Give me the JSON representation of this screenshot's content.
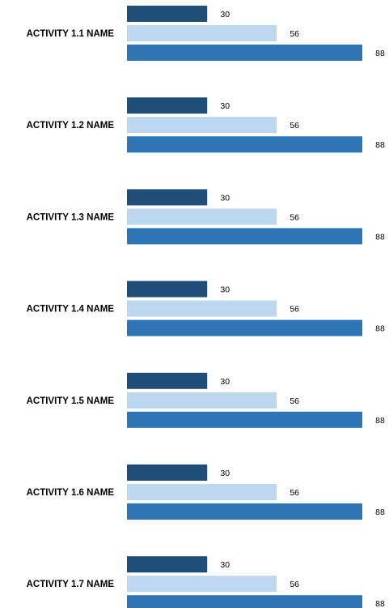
{
  "chart_data": {
    "type": "bar",
    "orientation": "horizontal",
    "categories": [
      "ACTIVITY 1.1 NAME",
      "ACTIVITY 1.2 NAME",
      "ACTIVITY 1.3 NAME",
      "ACTIVITY 1.4 NAME",
      "ACTIVITY 1.5 NAME",
      "ACTIVITY 1.6 NAME",
      "ACTIVITY 1.7 NAME"
    ],
    "series": [
      {
        "values": [
          30,
          30,
          30,
          30,
          30,
          30,
          30
        ],
        "color": "#1f4e79"
      },
      {
        "values": [
          56,
          56,
          56,
          56,
          56,
          56,
          56
        ],
        "color": "#bdd7ee"
      },
      {
        "values": [
          88,
          88,
          88,
          88,
          88,
          88,
          88
        ],
        "color": "#2e75b6"
      }
    ],
    "xlim": [
      0,
      88
    ],
    "data_labels": true,
    "grid": false,
    "legend": "none",
    "title": "",
    "xlabel": "",
    "ylabel": ""
  }
}
